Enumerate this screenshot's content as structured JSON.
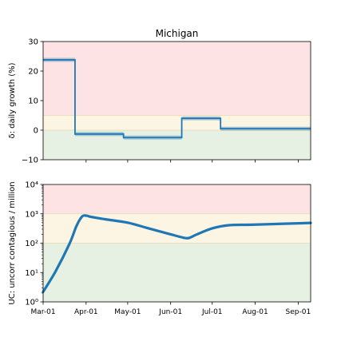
{
  "colors": {
    "band_red": "#fde3e3",
    "band_yellow": "#fdf5e4",
    "band_green": "#e6f0e3",
    "line": "#1f77b4",
    "axis": "#000000"
  },
  "chart_data": [
    {
      "type": "line",
      "title": "Michigan",
      "xlabel": "",
      "ylabel": "δ: daily growth (%)",
      "y_scale": "linear",
      "ylim": [
        -10,
        30
      ],
      "xlim": [
        "2020-03-01",
        "2020-09-10"
      ],
      "y_ticks": [
        -10,
        0,
        10,
        20,
        30
      ],
      "y_tick_labels": [
        "−10",
        "0",
        "10",
        "20",
        "30"
      ],
      "x_tick_dates": [
        "2020-04-01",
        "2020-05-01",
        "2020-06-01",
        "2020-07-01",
        "2020-08-01",
        "2020-09-01"
      ],
      "x_tick_labels": [],
      "bands": [
        {
          "from": -10,
          "to": 0,
          "color": "green"
        },
        {
          "from": 0,
          "to": 5,
          "color": "yellow"
        },
        {
          "from": 5,
          "to": 30,
          "color": "red"
        }
      ],
      "series": [
        {
          "step": true,
          "x": [
            "2020-03-01",
            "2020-03-24",
            "2020-03-24",
            "2020-04-28",
            "2020-04-28",
            "2020-06-09",
            "2020-06-09",
            "2020-07-07",
            "2020-07-07",
            "2020-09-10"
          ],
          "y": [
            23.8,
            23.8,
            -1.3,
            -1.3,
            -2.5,
            -2.5,
            4.0,
            4.0,
            0.5,
            0.5
          ]
        }
      ],
      "grid": false
    },
    {
      "type": "line",
      "title": "",
      "xlabel": "",
      "ylabel": "UC: uncorr contagious / million",
      "y_scale": "log",
      "ylim": [
        1,
        10000
      ],
      "xlim": [
        "2020-03-01",
        "2020-09-10"
      ],
      "y_ticks": [
        1,
        10,
        100,
        1000,
        10000
      ],
      "y_tick_labels": [
        "10⁰",
        "10¹",
        "10²",
        "10³",
        "10⁴"
      ],
      "x_tick_dates": [
        "2020-03-01",
        "2020-04-01",
        "2020-05-01",
        "2020-06-01",
        "2020-07-01",
        "2020-08-01",
        "2020-09-01"
      ],
      "x_tick_labels": [
        "Mar-01",
        "Apr-01",
        "May-01",
        "Jun-01",
        "Jul-01",
        "Aug-01",
        "Sep-01"
      ],
      "bands": [
        {
          "from": 1,
          "to": 100,
          "color": "green"
        },
        {
          "from": 100,
          "to": 1000,
          "color": "yellow"
        },
        {
          "from": 1000,
          "to": 10000,
          "color": "red"
        }
      ],
      "series": [
        {
          "x": [
            "2020-03-01",
            "2020-03-10",
            "2020-03-20",
            "2020-03-25",
            "2020-03-29",
            "2020-04-01",
            "2020-04-05",
            "2020-04-15",
            "2020-05-01",
            "2020-05-15",
            "2020-06-01",
            "2020-06-10",
            "2020-06-14",
            "2020-06-20",
            "2020-07-01",
            "2020-07-13",
            "2020-08-01",
            "2020-09-10"
          ],
          "y": [
            2.2,
            11,
            95,
            380,
            800,
            870,
            780,
            650,
            500,
            330,
            200,
            155,
            150,
            200,
            320,
            410,
            430,
            490
          ]
        }
      ],
      "grid": false
    }
  ]
}
